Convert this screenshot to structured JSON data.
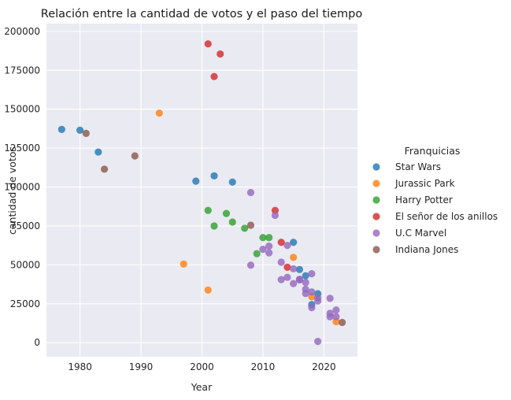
{
  "chart_data": {
    "type": "scatter",
    "title": "Relación entre la cantidad de votos y el paso del tiempo",
    "xlabel": "Year",
    "ylabel": "cantidad de votos",
    "xlim": [
      1974.5,
      2025.5
    ],
    "ylim": [
      -9000,
      205000
    ],
    "xticks": [
      1980,
      1990,
      2000,
      2010,
      2020
    ],
    "yticks": [
      0,
      25000,
      50000,
      75000,
      100000,
      125000,
      150000,
      175000,
      200000
    ],
    "grid": true,
    "legend": {
      "title": "Franquicias",
      "placement": "right"
    },
    "series": [
      {
        "name": "Star Wars",
        "color": "#1f77b4",
        "x": [
          1977,
          1980,
          1983,
          1999,
          2002,
          2005,
          2015,
          2016,
          2017,
          2018,
          2019
        ],
        "y": [
          137000,
          136500,
          122500,
          103800,
          107200,
          103200,
          64500,
          47000,
          43000,
          24500,
          31500
        ]
      },
      {
        "name": "Jurassic Park",
        "color": "#ff7f0e",
        "x": [
          1993,
          1997,
          2001,
          2015,
          2018,
          2022
        ],
        "y": [
          147500,
          50500,
          33800,
          54800,
          29500,
          13500
        ]
      },
      {
        "name": "Harry Potter",
        "color": "#2ca02c",
        "x": [
          2001,
          2002,
          2004,
          2005,
          2007,
          2009,
          2010,
          2011
        ],
        "y": [
          85000,
          75000,
          83000,
          77500,
          73500,
          57200,
          67500,
          67500
        ]
      },
      {
        "name": "El señor de los anillos",
        "color": "#d62728",
        "x": [
          2001,
          2002,
          2003,
          2012,
          2013,
          2014
        ],
        "y": [
          192000,
          171000,
          185500,
          85000,
          64500,
          48500
        ]
      },
      {
        "name": "U.C Marvel",
        "color": "#9467bd",
        "x": [
          2008,
          2008,
          2010,
          2011,
          2011,
          2012,
          2013,
          2013,
          2014,
          2014,
          2015,
          2015,
          2016,
          2016,
          2017,
          2017,
          2017,
          2018,
          2018,
          2018,
          2019,
          2019,
          2021,
          2021,
          2021,
          2022,
          2022,
          2019
        ],
        "y": [
          96500,
          49800,
          60000,
          62000,
          57700,
          81800,
          51700,
          40500,
          62500,
          42000,
          47500,
          38000,
          40300,
          40800,
          38700,
          34300,
          31600,
          44300,
          32600,
          22500,
          28800,
          26800,
          28500,
          18900,
          16600,
          21000,
          16700,
          800
        ]
      },
      {
        "name": "Indiana Jones",
        "color": "#8c564b",
        "x": [
          1981,
          1984,
          1989,
          2008,
          2023
        ],
        "y": [
          134500,
          111500,
          120000,
          75500,
          13000
        ]
      }
    ]
  }
}
